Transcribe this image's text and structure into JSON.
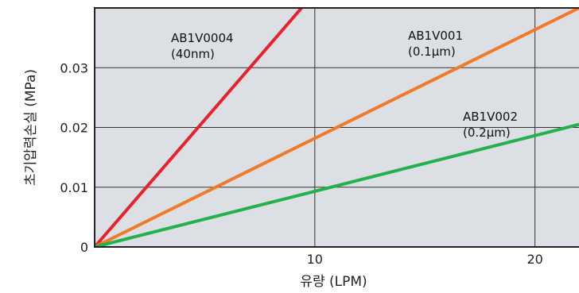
{
  "chart_data": {
    "type": "line",
    "xlabel": "유량 (LPM)",
    "ylabel": "초기압력손실 (MPa)",
    "xlim": [
      0,
      22
    ],
    "ylim": [
      0,
      0.04
    ],
    "x_ticks": [
      {
        "value": 10,
        "label": "10"
      },
      {
        "value": 20,
        "label": "20"
      }
    ],
    "y_ticks": [
      {
        "value": 0,
        "label": "0"
      },
      {
        "value": 0.01,
        "label": "0.01"
      },
      {
        "value": 0.02,
        "label": "0.02"
      },
      {
        "value": 0.03,
        "label": "0.03"
      }
    ],
    "grid": true,
    "background": "#dcdfe3",
    "series": [
      {
        "name": "AB1V0004",
        "sublabel": "(40nm)",
        "color": "#e8212e",
        "x": [
          0,
          9.4
        ],
        "y": [
          0,
          0.04
        ]
      },
      {
        "name": "AB1V001",
        "sublabel": "(0.1μm)",
        "color": "#f07a2a",
        "x": [
          0,
          22
        ],
        "y": [
          0,
          0.04
        ]
      },
      {
        "name": "AB1V002",
        "sublabel": "(0.2μm)",
        "color": "#22b14c",
        "x": [
          0,
          22
        ],
        "y": [
          0,
          0.0205
        ]
      }
    ]
  }
}
